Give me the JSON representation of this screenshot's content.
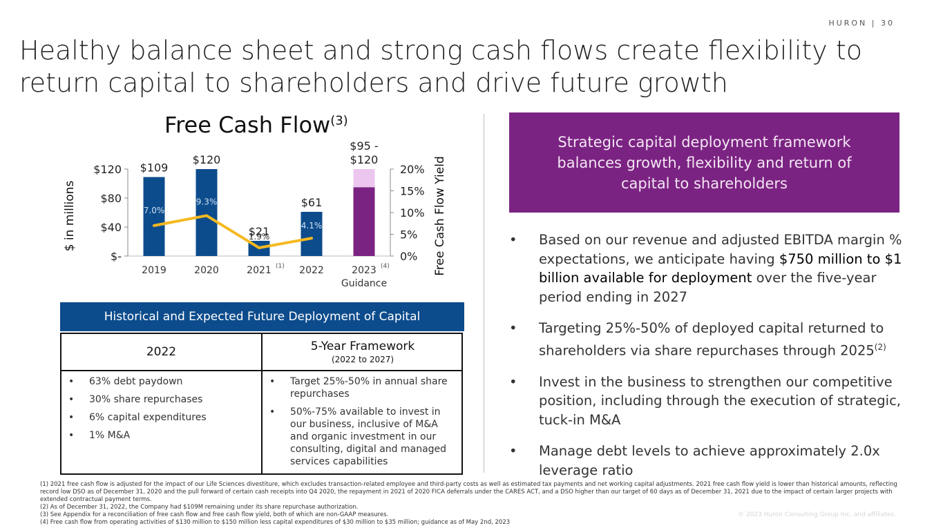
{
  "brand": "HURON  |  30",
  "title": "Healthy balance sheet and strong cash flows create flexibility to return capital to shareholders and drive future growth",
  "chart_title": "Free Cash Flow",
  "chart_title_sup": "(3)",
  "chart_data": {
    "type": "bar",
    "categories": [
      "2019",
      "2020",
      "2021",
      "2022",
      "2023"
    ],
    "category_notes": [
      "",
      "",
      "(1)",
      "",
      "(4)"
    ],
    "category_sub": [
      "",
      "",
      "",
      "",
      "Guidance"
    ],
    "values": [
      109,
      120,
      21,
      61,
      95
    ],
    "guidance_range": [
      95,
      120
    ],
    "value_labels": [
      "$109",
      "$120",
      "$21",
      "$61",
      "$95 -\n$120"
    ],
    "ylabel": "$ in millions",
    "ylim": [
      0,
      120
    ],
    "yticks": [
      0,
      40,
      80,
      120
    ],
    "ytick_labels": [
      "$-",
      "$40",
      "$80",
      "$120"
    ],
    "y2label": "Free Cash Flow Yield",
    "y2lim": [
      0,
      20
    ],
    "y2ticks": [
      0,
      5,
      10,
      15,
      20
    ],
    "y2tick_labels": [
      "0%",
      "5%",
      "10%",
      "15%",
      "20%"
    ],
    "yield_values": [
      7.0,
      9.3,
      1.9,
      4.1
    ],
    "yield_labels": [
      "7.0%",
      "9.3%",
      "1.9%",
      "4.1%"
    ],
    "colors": {
      "bar": "#0d4c8c",
      "guidance": "#7b2382",
      "guidance_range": "#ecc6ef",
      "line": "#f5b921"
    }
  },
  "deploy": {
    "header": "Historical and Expected Future Deployment of Capital",
    "left_head": "2022",
    "right_head": "5-Year Framework",
    "right_sub": "(2022 to 2027)",
    "left_items": [
      "63% debt paydown",
      "30% share repurchases",
      "6% capital expenditures",
      "1% M&A"
    ],
    "right_items": [
      "Target 25%-50% in annual share repurchases",
      "50%-75% available to invest in our business, inclusive of M&A and organic investment in our consulting, digital and managed services capabilities"
    ]
  },
  "callout": "Strategic capital deployment framework balances growth, flexibility and return of capital to shareholders",
  "bullet_marker": "•",
  "bullets": {
    "b1_pre": "Based on our revenue and adjusted EBITDA margin % expectations, we anticipate having ",
    "b1_bold": "$750 million to $1 billion available for deployment",
    "b1_post": " over the five-year period ending in 2027",
    "b2": "Targeting 25%-50% of deployed capital returned to shareholders via share repurchases through 2025",
    "b2_sup": "(2)",
    "b3": "Invest in the business to strengthen our competitive position, including through the execution of strategic, tuck-in M&A",
    "b4": "Manage debt levels to achieve approximately 2.0x leverage ratio"
  },
  "footnotes": [
    "(1) 2021 free cash flow is adjusted for the impact of our Life Sciences divestiture, which excludes transaction-related employee and third-party costs as well as estimated tax payments and net working capital adjustments. 2021 free cash flow yield is lower than historical amounts, reflecting record low DSO as of December 31, 2020 and the pull forward of certain cash receipts into Q4 2020, the repayment in 2021 of 2020 FICA deferrals under the CARES ACT, and a DSO higher than our target of 60 days as of December 31, 2021 due to the impact of certain larger projects with extended contractual payment terms.",
    "(2) As of December 31, 2022, the Company had $109M remaining under its share repurchase authorization.",
    "(3) See Appendix for a reconciliation of free cash flow and free cash flow yield, both of which are non-GAAP measures.",
    "(4) Free cash flow from operating activities of $130 million to $150 million less capital expenditures of $30 million to $35 million; guidance as of May 2nd, 2023"
  ],
  "copyright": "© 2023 Huron Consulting Group Inc. and affiliates."
}
